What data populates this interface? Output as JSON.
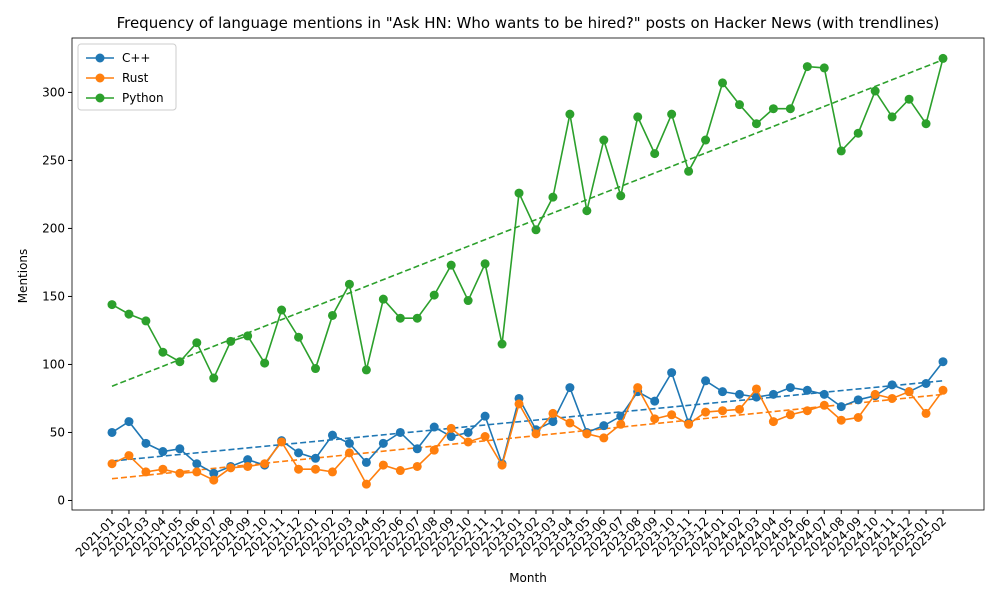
{
  "chart_data": {
    "type": "line",
    "title": "Frequency of language mentions in \"Ask HN: Who wants to be hired?\" posts on Hacker News (with trendlines)",
    "xlabel": "Month",
    "ylabel": "Mentions",
    "categories": [
      "2021-01",
      "2021-02",
      "2021-03",
      "2021-04",
      "2021-05",
      "2021-06",
      "2021-07",
      "2021-08",
      "2021-09",
      "2021-10",
      "2021-11",
      "2021-12",
      "2022-01",
      "2022-02",
      "2022-03",
      "2022-04",
      "2022-05",
      "2022-06",
      "2022-07",
      "2022-08",
      "2022-09",
      "2022-10",
      "2022-11",
      "2022-12",
      "2023-01",
      "2023-02",
      "2023-03",
      "2023-04",
      "2023-05",
      "2023-06",
      "2023-07",
      "2023-08",
      "2023-09",
      "2023-10",
      "2023-11",
      "2023-12",
      "2024-01",
      "2024-02",
      "2024-03",
      "2024-04",
      "2024-05",
      "2024-06",
      "2024-07",
      "2024-08",
      "2024-09",
      "2024-10",
      "2024-11",
      "2024-12",
      "2025-01",
      "2025-02"
    ],
    "series": [
      {
        "name": "C++",
        "color": "#1f77b4",
        "values": [
          50,
          58,
          42,
          36,
          38,
          27,
          20,
          25,
          30,
          26,
          44,
          35,
          31,
          48,
          42,
          28,
          42,
          50,
          38,
          54,
          47,
          50,
          62,
          27,
          75,
          52,
          58,
          83,
          50,
          55,
          62,
          80,
          73,
          94,
          57,
          88,
          80,
          78,
          76,
          78,
          83,
          81,
          78,
          69,
          74,
          77,
          85,
          80,
          86,
          102
        ],
        "trend": [
          29,
          88
        ]
      },
      {
        "name": "Rust",
        "color": "#ff7f0e",
        "values": [
          27,
          33,
          21,
          23,
          20,
          21,
          15,
          24,
          25,
          27,
          43,
          23,
          23,
          21,
          35,
          12,
          26,
          22,
          25,
          37,
          53,
          43,
          47,
          26,
          71,
          49,
          64,
          57,
          49,
          46,
          56,
          83,
          60,
          63,
          56,
          65,
          66,
          67,
          82,
          58,
          63,
          66,
          70,
          59,
          61,
          78,
          75,
          80,
          64,
          81
        ],
        "trend": [
          16,
          78
        ]
      },
      {
        "name": "Python",
        "color": "#2ca02c",
        "values": [
          144,
          137,
          132,
          109,
          102,
          116,
          90,
          117,
          121,
          101,
          140,
          120,
          97,
          136,
          159,
          96,
          148,
          134,
          134,
          151,
          173,
          147,
          174,
          115,
          226,
          199,
          223,
          284,
          213,
          265,
          224,
          282,
          255,
          284,
          242,
          265,
          307,
          291,
          277,
          288,
          288,
          319,
          318,
          257,
          270,
          301,
          282,
          295,
          277,
          325
        ],
        "trend": [
          84,
          324
        ]
      }
    ],
    "ylim": [
      -7,
      340
    ],
    "yticks": [
      0,
      50,
      100,
      150,
      200,
      250,
      300
    ],
    "grid": false,
    "legend": "upper-left"
  }
}
